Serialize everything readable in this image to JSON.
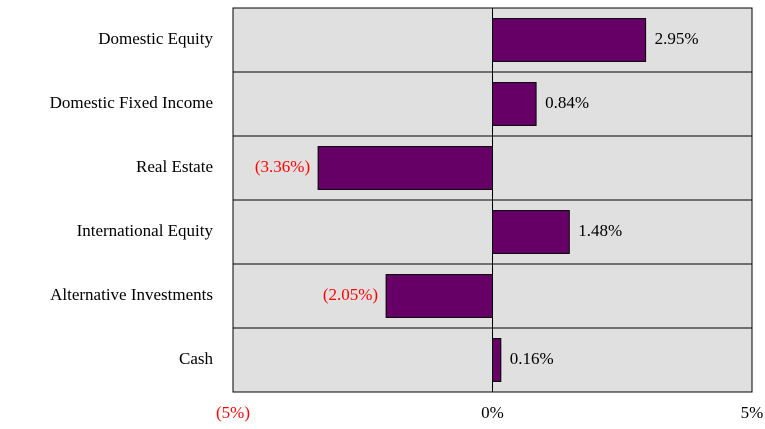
{
  "chart_data": {
    "type": "bar",
    "orientation": "horizontal",
    "categories": [
      "Domestic Equity",
      "Domestic Fixed Income",
      "Real Estate",
      "International Equity",
      "Alternative Investments",
      "Cash"
    ],
    "values": [
      2.95,
      0.84,
      -3.36,
      1.48,
      -2.05,
      0.16
    ],
    "value_labels": [
      "2.95%",
      "0.84%",
      "(3.36%)",
      "1.48%",
      "(2.05%)",
      "0.16%"
    ],
    "color": "#660066",
    "negative_label_color": "#ff0000",
    "background": "#e0e0e0",
    "xlim": [
      -5,
      5
    ],
    "xticks": [
      {
        "value": -5,
        "label": "(5%)"
      },
      {
        "value": 0,
        "label": "0%"
      },
      {
        "value": 5,
        "label": "5%"
      }
    ]
  }
}
